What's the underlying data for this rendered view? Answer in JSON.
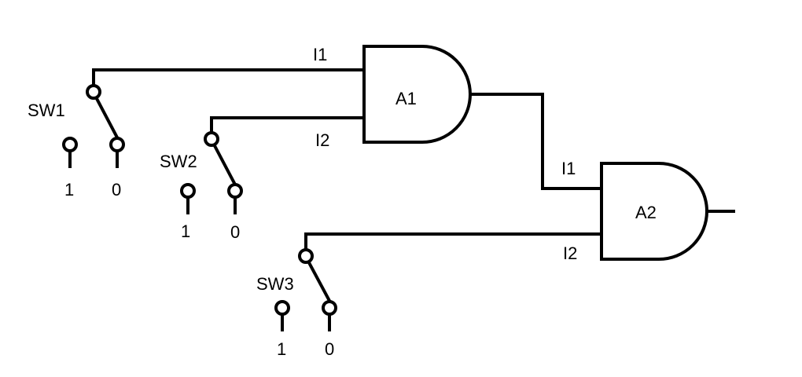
{
  "gates": {
    "a1": {
      "label": "A1",
      "in1": "I1",
      "in2": "I2"
    },
    "a2": {
      "label": "A2",
      "in1": "I1",
      "in2": "I2"
    }
  },
  "switches": {
    "sw1": {
      "label": "SW1",
      "one": "1",
      "zero": "0"
    },
    "sw2": {
      "label": "SW2",
      "one": "1",
      "zero": "0"
    },
    "sw3": {
      "label": "SW3",
      "one": "1",
      "zero": "0"
    }
  }
}
